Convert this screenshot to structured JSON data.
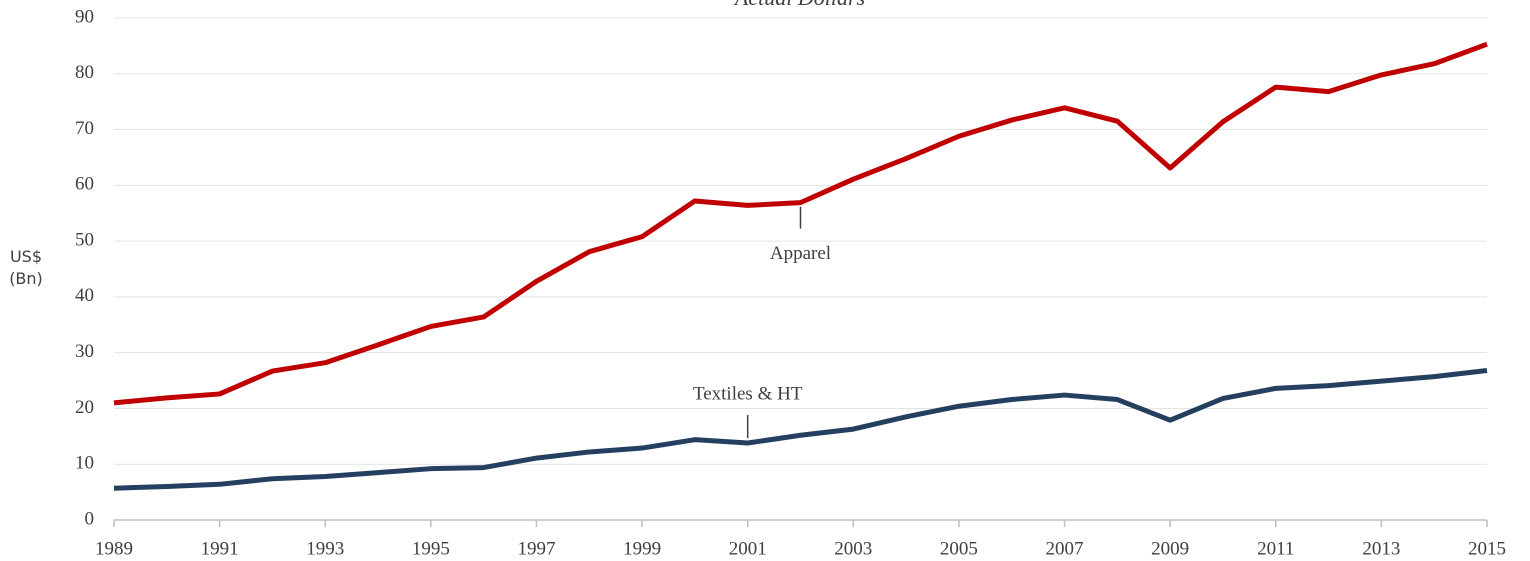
{
  "chart_data": {
    "type": "line",
    "title": "Actual Dollars",
    "y_label": "US$ (Bn)",
    "x": [
      1989,
      1990,
      1991,
      1992,
      1993,
      1994,
      1995,
      1996,
      1997,
      1998,
      1999,
      2000,
      2001,
      2002,
      2003,
      2004,
      2005,
      2006,
      2007,
      2008,
      2009,
      2010,
      2011,
      2012,
      2013,
      2014,
      2015
    ],
    "series": [
      {
        "name": "Apparel",
        "color": "#c00000",
        "values": [
          21.0,
          21.9,
          22.6,
          26.7,
          28.2,
          31.4,
          34.7,
          36.4,
          42.8,
          48.1,
          50.8,
          57.2,
          56.4,
          56.9,
          61.1,
          64.8,
          68.8,
          71.7,
          73.9,
          71.5,
          63.1,
          71.4,
          77.6,
          76.8,
          79.8,
          81.8,
          85.3
        ]
      },
      {
        "name": "Textiles & HT",
        "color": "#243f60",
        "values": [
          5.7,
          6.0,
          6.4,
          7.4,
          7.8,
          8.5,
          9.2,
          9.4,
          11.1,
          12.2,
          12.9,
          14.4,
          13.8,
          15.2,
          16.3,
          18.5,
          20.4,
          21.6,
          22.4,
          21.6,
          17.9,
          21.8,
          23.6,
          24.1,
          24.9,
          25.7,
          26.8
        ]
      }
    ],
    "annotations": [
      {
        "text": "Apparel",
        "x": 2002
      },
      {
        "text": "Textiles & HT",
        "x": 2001
      }
    ],
    "xlim": [
      1989,
      2015
    ],
    "xticks": [
      1989,
      1991,
      1993,
      1995,
      1997,
      1999,
      2001,
      2003,
      2005,
      2007,
      2009,
      2011,
      2013,
      2015
    ],
    "ylim": [
      0,
      90
    ],
    "yticks": [
      0,
      10,
      20,
      30,
      40,
      50,
      60,
      70,
      80,
      90
    ],
    "grid": true
  }
}
